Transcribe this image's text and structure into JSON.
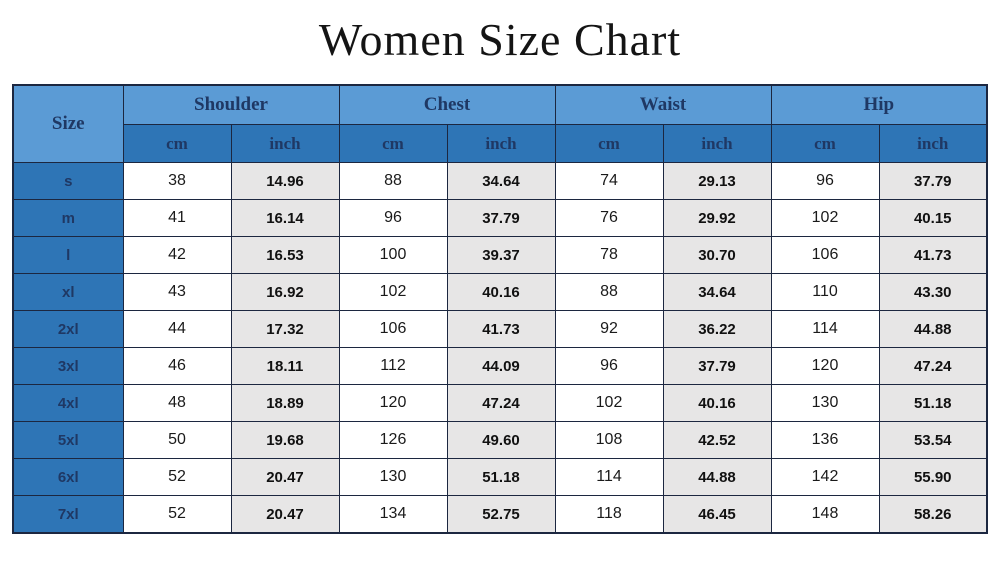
{
  "title": "Women Size Chart",
  "colors": {
    "header_light_blue": "#5b9bd5",
    "header_dark_blue": "#2e75b6",
    "header_text": "#1f3864",
    "inch_cell_bg": "#e7e6e6",
    "border": "#1c2740"
  },
  "table": {
    "size_header": "Size",
    "groups": [
      "Shoulder",
      "Chest",
      "Waist",
      "Hip"
    ],
    "sub_headers": [
      "cm",
      "inch",
      "cm",
      "inch",
      "cm",
      "inch",
      "cm",
      "inch"
    ]
  },
  "chart_data": {
    "type": "table",
    "title": "Women Size Chart",
    "columns": [
      "Size",
      "Shoulder cm",
      "Shoulder inch",
      "Chest cm",
      "Chest inch",
      "Waist cm",
      "Waist inch",
      "Hip cm",
      "Hip inch"
    ],
    "rows": [
      {
        "size": "s",
        "values": [
          "38",
          "14.96",
          "88",
          "34.64",
          "74",
          "29.13",
          "96",
          "37.79"
        ]
      },
      {
        "size": "m",
        "values": [
          "41",
          "16.14",
          "96",
          "37.79",
          "76",
          "29.92",
          "102",
          "40.15"
        ]
      },
      {
        "size": "l",
        "values": [
          "42",
          "16.53",
          "100",
          "39.37",
          "78",
          "30.70",
          "106",
          "41.73"
        ]
      },
      {
        "size": "xl",
        "values": [
          "43",
          "16.92",
          "102",
          "40.16",
          "88",
          "34.64",
          "110",
          "43.30"
        ]
      },
      {
        "size": "2xl",
        "values": [
          "44",
          "17.32",
          "106",
          "41.73",
          "92",
          "36.22",
          "114",
          "44.88"
        ]
      },
      {
        "size": "3xl",
        "values": [
          "46",
          "18.11",
          "112",
          "44.09",
          "96",
          "37.79",
          "120",
          "47.24"
        ]
      },
      {
        "size": "4xl",
        "values": [
          "48",
          "18.89",
          "120",
          "47.24",
          "102",
          "40.16",
          "130",
          "51.18"
        ]
      },
      {
        "size": "5xl",
        "values": [
          "50",
          "19.68",
          "126",
          "49.60",
          "108",
          "42.52",
          "136",
          "53.54"
        ]
      },
      {
        "size": "6xl",
        "values": [
          "52",
          "20.47",
          "130",
          "51.18",
          "114",
          "44.88",
          "142",
          "55.90"
        ]
      },
      {
        "size": "7xl",
        "values": [
          "52",
          "20.47",
          "134",
          "52.75",
          "118",
          "46.45",
          "148",
          "58.26"
        ]
      }
    ]
  }
}
